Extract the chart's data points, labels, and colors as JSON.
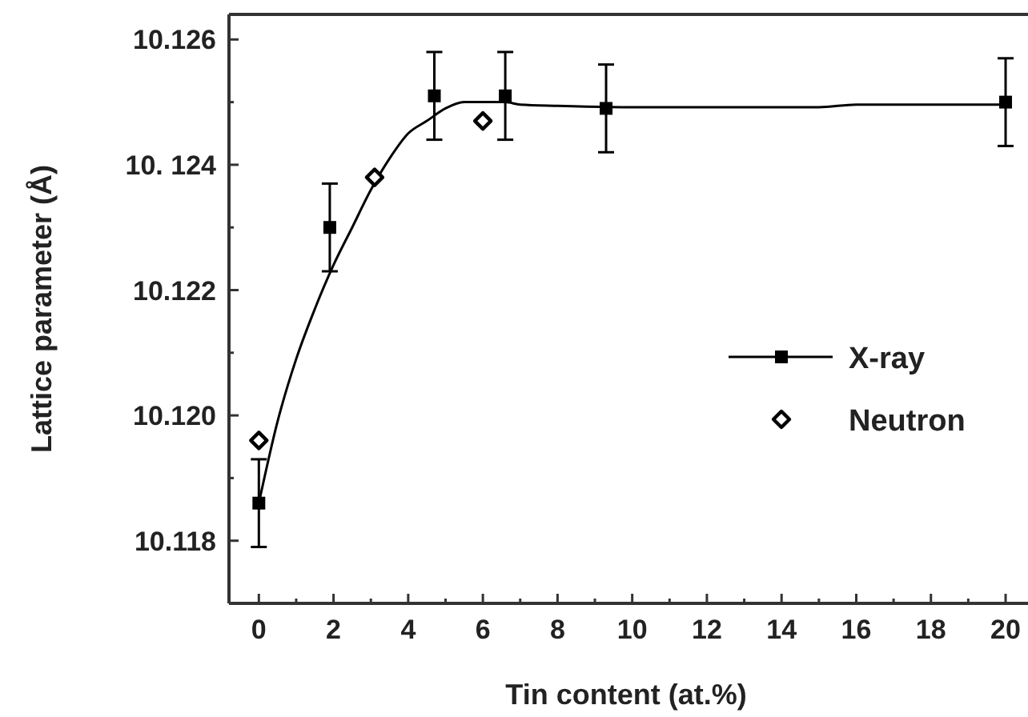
{
  "chart_data": {
    "type": "scatter",
    "xlabel": "Tin content (at.%)",
    "ylabel": "Lattice parameter (Å)",
    "xlim": [
      -0.8,
      20.6
    ],
    "ylim": [
      10.117,
      10.1264
    ],
    "xticks": [
      0,
      {
        "value": 1,
        "label": null
      },
      2,
      {
        "value": 3,
        "label": null
      },
      4,
      {
        "value": 5,
        "label": null
      },
      6,
      {
        "value": 7,
        "label": null
      },
      8,
      {
        "value": 9,
        "label": null
      },
      10,
      {
        "value": 11,
        "label": null
      },
      12,
      {
        "value": 13,
        "label": null
      },
      14,
      {
        "value": 15,
        "label": null
      },
      16,
      {
        "value": 17,
        "label": null
      },
      18,
      {
        "value": 19,
        "label": null
      },
      20
    ],
    "yticks": [
      {
        "value": 10.118,
        "label": "10.118"
      },
      {
        "value": 10.119,
        "label": null
      },
      {
        "value": 10.12,
        "label": "10.120"
      },
      {
        "value": 10.121,
        "label": null
      },
      {
        "value": 10.122,
        "label": "10.122"
      },
      {
        "value": 10.123,
        "label": null
      },
      {
        "value": 10.124,
        "label": "10. 124"
      },
      {
        "value": 10.125,
        "label": null
      },
      {
        "value": 10.126,
        "label": "10.126"
      }
    ],
    "grid": false,
    "legend": "right",
    "series": [
      {
        "type": "line",
        "color": "#000000",
        "marker": "none",
        "x": [
          0,
          0.5,
          1,
          1.5,
          2,
          2.5,
          3,
          3.5,
          4,
          4.5,
          5,
          5.5,
          6.6,
          7,
          8,
          10,
          15,
          16,
          20
        ],
        "values": [
          10.1186,
          10.1199,
          10.1209,
          10.1217,
          10.1224,
          10.123,
          10.1236,
          10.1241,
          10.1245,
          10.1247,
          10.1249,
          10.125,
          10.125,
          10.12496,
          10.12494,
          10.12492,
          10.12492,
          10.12496,
          10.12496
        ]
      },
      {
        "name": "X-ray",
        "color": "#000000",
        "marker": "square",
        "x": [
          0,
          1.9,
          4.7,
          6.6,
          9.3,
          20
        ],
        "values": [
          10.1186,
          10.123,
          10.1251,
          10.1251,
          10.1249,
          10.125
        ],
        "errors": [
          0.0007,
          0.0007,
          0.0007,
          0.0007,
          0.0007,
          0.0007
        ]
      },
      {
        "name": "Neutron",
        "color": "#000000",
        "marker": "diamond",
        "x": [
          0,
          3.1,
          6
        ],
        "values": [
          10.1196,
          10.1238,
          10.1247
        ]
      }
    ]
  }
}
